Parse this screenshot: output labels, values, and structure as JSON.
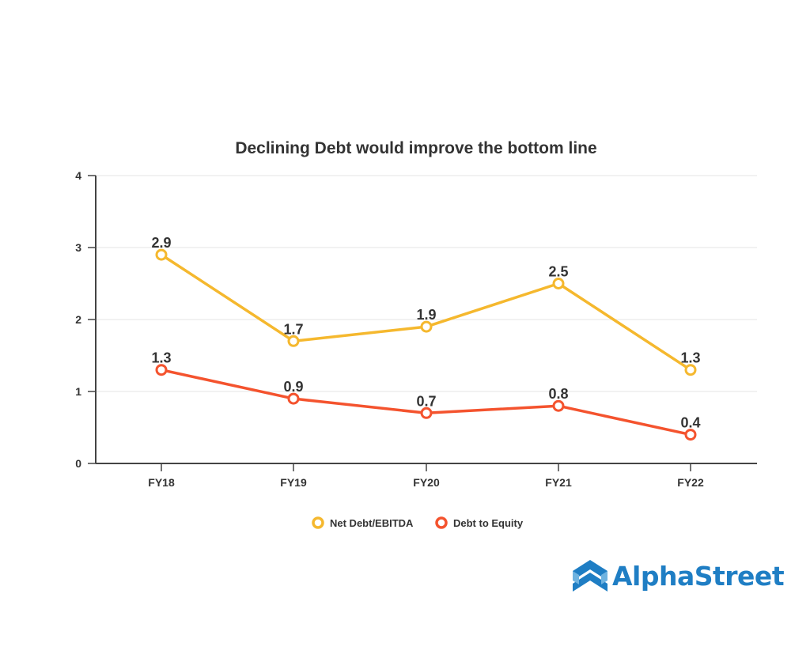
{
  "chart_data": {
    "type": "line",
    "title": "Declining Debt would improve the bottom line",
    "xlabel": "",
    "ylabel": "",
    "categories": [
      "FY18",
      "FY19",
      "FY20",
      "FY21",
      "FY22"
    ],
    "ylim": [
      0,
      4
    ],
    "yticks": [
      "0",
      "1",
      "2",
      "3",
      "4"
    ],
    "grid": true,
    "legend_position": "bottom-center",
    "series": [
      {
        "name": "Net Debt/EBITDA",
        "color": "#f5b82e",
        "values": [
          2.9,
          1.7,
          1.9,
          2.5,
          1.3
        ],
        "labels": [
          "2.9",
          "1.7",
          "1.9",
          "2.5",
          "1.3"
        ]
      },
      {
        "name": "Debt to Equity",
        "color": "#f4532e",
        "values": [
          1.3,
          0.9,
          0.7,
          0.8,
          0.4
        ],
        "labels": [
          "1.3",
          "0.9",
          "0.7",
          "0.8",
          "0.4"
        ]
      }
    ]
  },
  "brand": {
    "name": "AlphaStreet",
    "color": "#1f7ec4"
  }
}
